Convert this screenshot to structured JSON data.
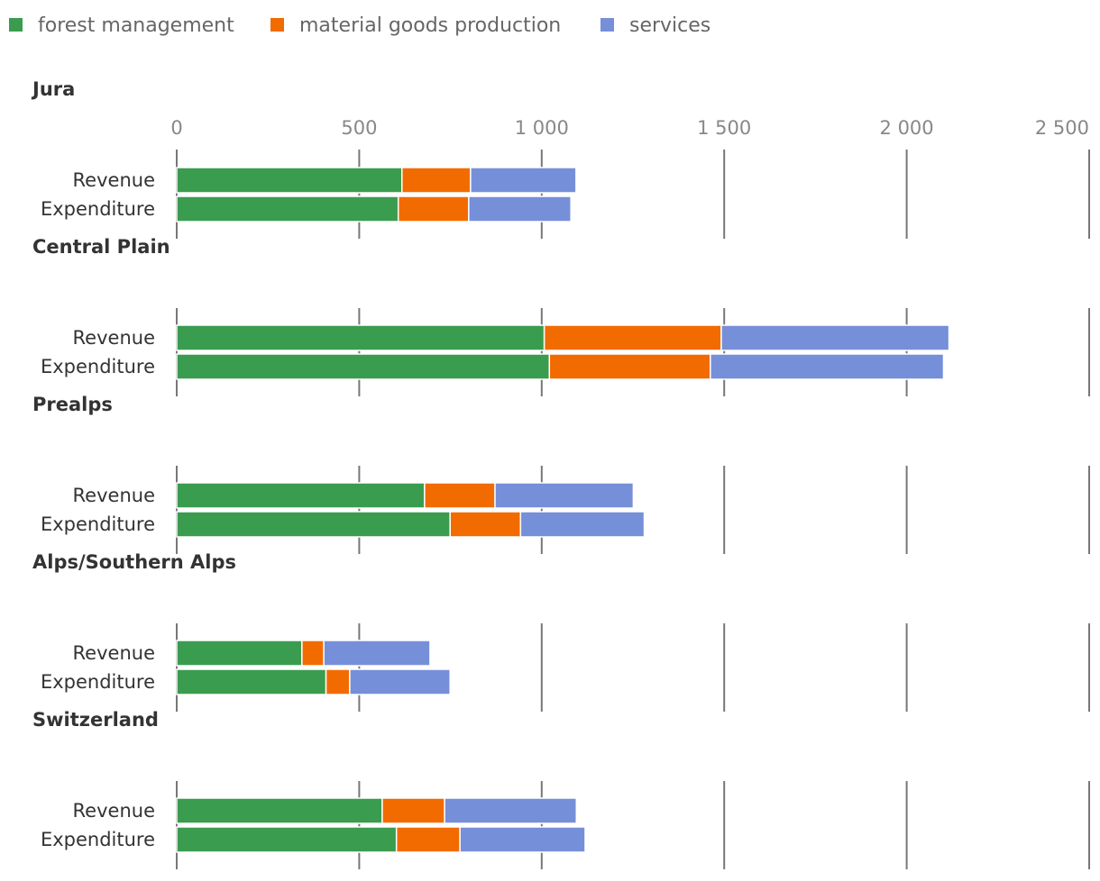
{
  "chart_data": {
    "type": "bar",
    "orientation": "horizontal",
    "stacked": true,
    "xlim": [
      0,
      2500
    ],
    "ticks": [
      0,
      500,
      1000,
      1500,
      2000,
      2500
    ],
    "tick_labels": [
      "0",
      "500",
      "1 000",
      "1 500",
      "2 000",
      "2 500"
    ],
    "grid": true,
    "legend_position": "top-left",
    "series": [
      {
        "name": "forest management",
        "color": "#3a9c4f"
      },
      {
        "name": "material goods production",
        "color": "#f26b00"
      },
      {
        "name": "services",
        "color": "#768fd9"
      }
    ],
    "row_labels": [
      "Revenue",
      "Expenditure"
    ],
    "panels": [
      {
        "title": "Jura",
        "rows": [
          {
            "label": "Revenue",
            "values": [
              617,
              188,
              289
            ]
          },
          {
            "label": "Expenditure",
            "values": [
              607,
              193,
              280
            ]
          }
        ]
      },
      {
        "title": "Central Plain",
        "rows": [
          {
            "label": "Revenue",
            "values": [
              1007,
              485,
              624
            ]
          },
          {
            "label": "Expenditure",
            "values": [
              1021,
              441,
              639
            ]
          }
        ]
      },
      {
        "title": "Prealps",
        "rows": [
          {
            "label": "Revenue",
            "values": [
              679,
              193,
              379
            ]
          },
          {
            "label": "Expenditure",
            "values": [
              749,
              193,
              339
            ]
          }
        ]
      },
      {
        "title": "Alps/Southern Alps",
        "rows": [
          {
            "label": "Revenue",
            "values": [
              343,
              60,
              291
            ]
          },
          {
            "label": "Expenditure",
            "values": [
              409,
              65,
              275
            ]
          }
        ]
      },
      {
        "title": "Switzerland",
        "rows": [
          {
            "label": "Revenue",
            "values": [
              563,
              171,
              361
            ]
          },
          {
            "label": "Expenditure",
            "values": [
              602,
              174,
              343
            ]
          }
        ]
      }
    ]
  }
}
